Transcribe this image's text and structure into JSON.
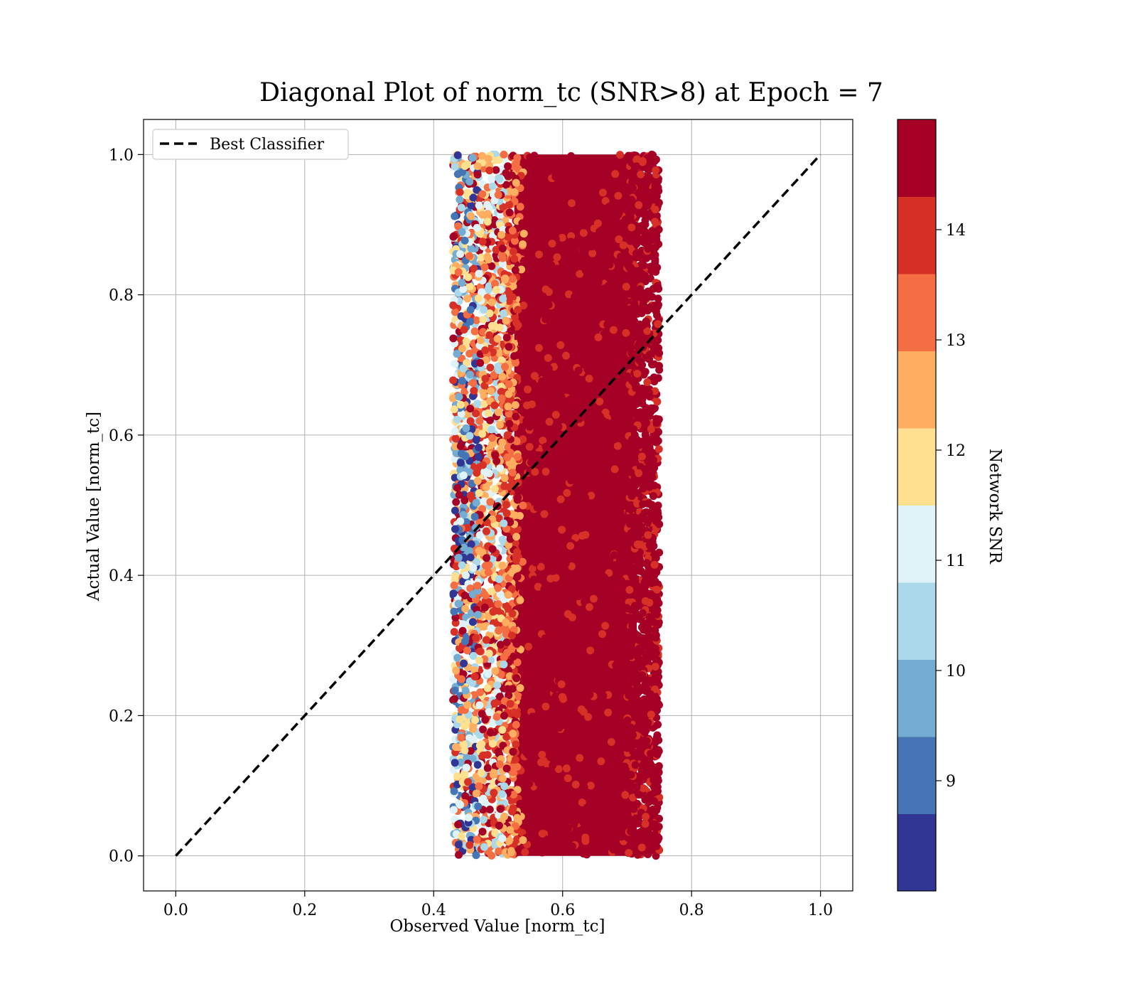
{
  "chart_data": {
    "type": "scatter",
    "title": "Diagonal Plot of norm_tc (SNR>8) at Epoch = 7",
    "xlabel": "Observed Value [norm_tc]",
    "ylabel": "Actual Value [norm_tc]",
    "xlim": [
      -0.05,
      1.05
    ],
    "ylim": [
      -0.05,
      1.05
    ],
    "xticks": [
      "0.0",
      "0.2",
      "0.4",
      "0.6",
      "0.8",
      "1.0"
    ],
    "yticks": [
      "0.0",
      "0.2",
      "0.4",
      "0.6",
      "0.8",
      "1.0"
    ],
    "grid": true,
    "legend": {
      "position": "top-left",
      "entries": [
        "Best Classifier"
      ]
    },
    "reference_line": {
      "name": "Best Classifier",
      "style": "dashed",
      "color": "#000000",
      "x": [
        0.0,
        1.0
      ],
      "y": [
        0.0,
        1.0
      ]
    },
    "scatter": {
      "x_range": [
        0.43,
        0.76
      ],
      "y_range": [
        0.0,
        1.0
      ],
      "description_of_color": "colored by Network SNR; low SNR at left edge, high SNR dominant in center"
    },
    "colorbar": {
      "label": "Network SNR",
      "min": 8.0,
      "max": 15.0,
      "ticks": [
        "9",
        "10",
        "11",
        "12",
        "13",
        "14"
      ],
      "tick_values": [
        9,
        10,
        11,
        12,
        13,
        14
      ],
      "colors": [
        "#313695",
        "#4575b4",
        "#74add1",
        "#abd9e9",
        "#e0f3f8",
        "#fee090",
        "#fdae61",
        "#f46d43",
        "#d73027",
        "#a50026"
      ]
    }
  }
}
